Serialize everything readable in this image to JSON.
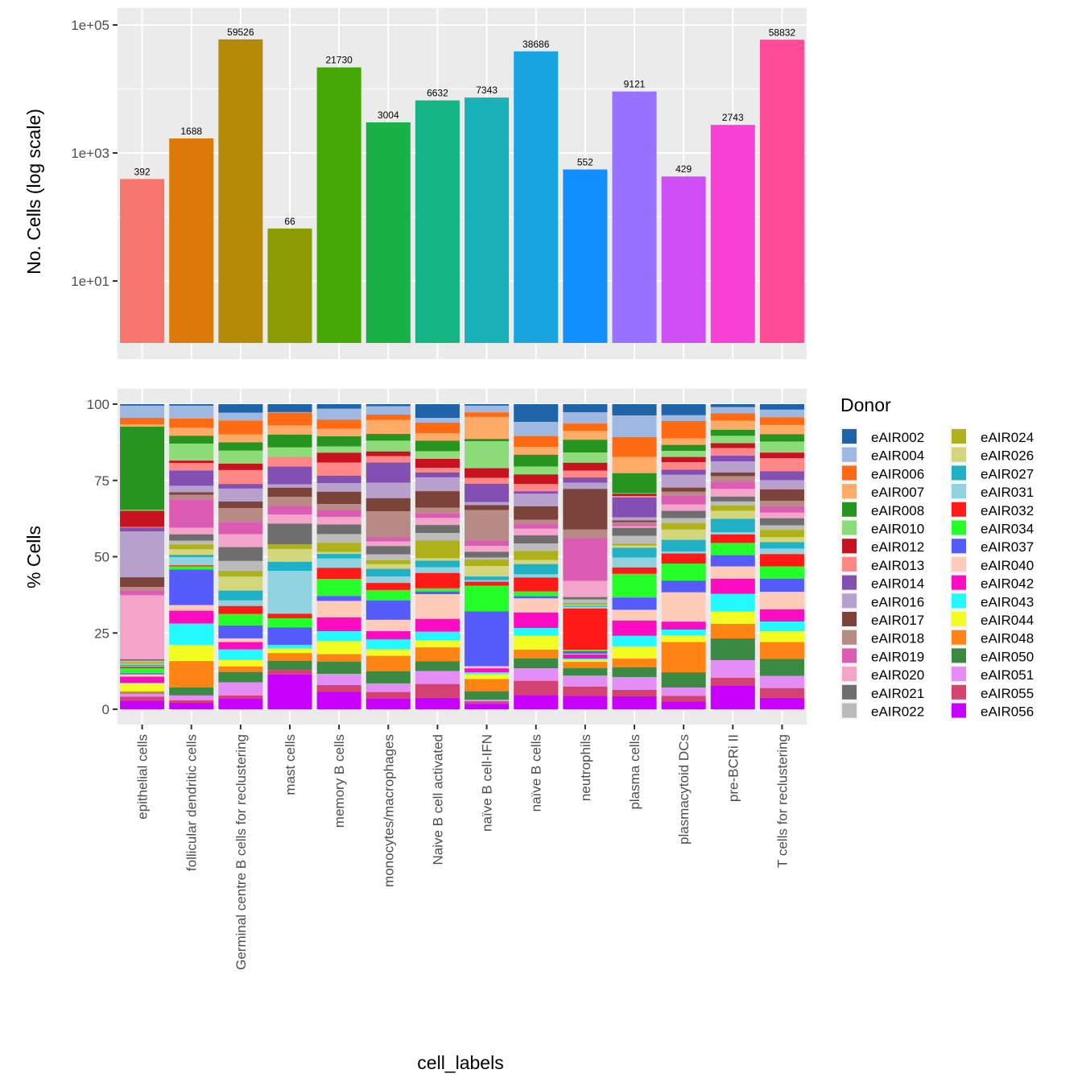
{
  "chart_data": [
    {
      "type": "bar",
      "title": "",
      "xlabel": "",
      "ylabel": "No. Cells (log scale)",
      "yscale": "log",
      "ylim": [
        1,
        100000
      ],
      "yticks": [
        10,
        1000,
        100000
      ],
      "ytick_labels": [
        "1e+01",
        "1e+03",
        "1e+05"
      ],
      "categories": [
        "epithelial cells",
        "follicular dendritic cells",
        "Germinal centre B cells for reclustering",
        "mast cells",
        "memory B cells",
        "monocytes/macrophages",
        "Naive B cell activated",
        "naïve B cell-IFN",
        "naïve B cells",
        "neutrophils",
        "plasma cells",
        "plasmacytoid DCs",
        "pre-BCRi II",
        "T cells for reclustering"
      ],
      "values": [
        392,
        1688,
        59526,
        66,
        21730,
        3004,
        6632,
        7343,
        38686,
        552,
        9121,
        429,
        2743,
        58832
      ],
      "data_labels": [
        "392",
        "1688",
        "59526",
        "66",
        "21730",
        "3004",
        "6632",
        "7343",
        "38686",
        "552",
        "9121",
        "429",
        "2743",
        "58832"
      ],
      "colors": [
        "#F8766D",
        "#DB7A0B",
        "#B58A07",
        "#8A9B04",
        "#45A805",
        "#17B145",
        "#16B585",
        "#17B1B7",
        "#19A5E2",
        "#128FFF",
        "#9772FF",
        "#D04EF5",
        "#F841D4",
        "#FF4A97"
      ],
      "grid": true
    },
    {
      "type": "bar",
      "stacked": true,
      "title": "",
      "xlabel": "cell_labels",
      "ylabel": "% Cells",
      "ylim": [
        0,
        100
      ],
      "yticks": [
        0,
        25,
        50,
        75,
        100
      ],
      "ytick_labels": [
        "0",
        "25",
        "50",
        "75",
        "100"
      ],
      "categories": [
        "epithelial cells",
        "follicular dendritic cells",
        "Germinal centre B cells for reclustering",
        "mast cells",
        "memory B cells",
        "monocytes/macrophages",
        "Naive B cell activated",
        "naïve B cell-IFN",
        "naïve B cells",
        "neutrophils",
        "plasma cells",
        "plasmacytoid DCs",
        "pre-BCRi II",
        "T cells for reclustering"
      ],
      "legend_title": "Donor",
      "legend_position": "right",
      "grid": true,
      "series": [
        {
          "name": "eAIR002",
          "color": "#1F63A8",
          "values": [
            0.5,
            0.5,
            2.8,
            2.8,
            1.5,
            0.7,
            4.5,
            0.5,
            5.7,
            2.8,
            3.7,
            3.5,
            1.0,
            1.8
          ]
        },
        {
          "name": "eAIR004",
          "color": "#9FB8E1",
          "values": [
            4.0,
            4.2,
            2.5,
            0.2,
            3.5,
            2.7,
            1.5,
            2.2,
            4.5,
            3.8,
            7.0,
            1.8,
            2.0,
            2.5
          ]
        },
        {
          "name": "eAIR006",
          "color": "#FF6B12",
          "values": [
            2.1,
            3.0,
            4.5,
            4.5,
            3.0,
            1.8,
            3.5,
            1.5,
            3.5,
            2.5,
            6.5,
            5.5,
            2.4,
            2.5
          ]
        },
        {
          "name": "eAIR007",
          "color": "#FFAA67",
          "values": [
            0.8,
            2.6,
            2.6,
            3.2,
            2.4,
            4.5,
            2.4,
            7.2,
            2.5,
            3.0,
            5.3,
            2.0,
            3.0,
            3.0
          ]
        },
        {
          "name": "eAIR008",
          "color": "#27941F",
          "values": [
            27.3,
            2.6,
            2.7,
            4.5,
            3.3,
            2.2,
            3.4,
            0.8,
            3.8,
            4.3,
            6.5,
            1.9,
            2.0,
            2.4
          ]
        },
        {
          "name": "eAIR010",
          "color": "#8CDD7A",
          "values": [
            0.3,
            5.5,
            4.2,
            3.2,
            2.0,
            3.5,
            2.5,
            8.8,
            2.5,
            3.5,
            0.2,
            1.9,
            2.4,
            3.6
          ]
        },
        {
          "name": "eAIR012",
          "color": "#C9121F",
          "values": [
            5.3,
            0.8,
            2.1,
            0.0,
            3.2,
            1.5,
            2.9,
            3.2,
            3.1,
            2.7,
            0.7,
            1.6,
            1.6,
            1.8
          ]
        },
        {
          "name": "eAIR013",
          "color": "#FF8786",
          "values": [
            0.2,
            2.4,
            4.5,
            3.5,
            4.2,
            2.1,
            1.5,
            1.9,
            2.3,
            2.3,
            0.5,
            2.4,
            2.5,
            4.3
          ]
        },
        {
          "name": "eAIR014",
          "color": "#844FB2",
          "values": [
            1.3,
            5.0,
            1.5,
            6.2,
            2.4,
            6.6,
            1.6,
            6.0,
            0.8,
            1.8,
            6.5,
            1.6,
            1.9,
            2.9
          ]
        },
        {
          "name": "eAIR016",
          "color": "#B8A0CD",
          "values": [
            15.0,
            2.1,
            4.2,
            1.2,
            2.8,
            5.0,
            4.5,
            1.0,
            4.0,
            2.1,
            1.0,
            4.0,
            3.6,
            3.0
          ]
        },
        {
          "name": "eAIR017",
          "color": "#7B4339",
          "values": [
            3.2,
            0.8,
            2.1,
            3.2,
            4.0,
            4.3,
            5.4,
            1.6,
            4.3,
            13.8,
            0.6,
            1.3,
            1.2,
            3.7
          ]
        },
        {
          "name": "eAIR018",
          "color": "#B78A83",
          "values": [
            1.1,
            1.5,
            4.5,
            3.2,
            1.8,
            8.3,
            1.8,
            10.0,
            1.3,
            2.9,
            0.6,
            1.3,
            1.8,
            1.8
          ]
        },
        {
          "name": "eAIR019",
          "color": "#DC5CB4",
          "values": [
            1.6,
            9.3,
            4.0,
            3.0,
            2.4,
            1.5,
            1.5,
            1.8,
            1.6,
            14.5,
            0.7,
            2.7,
            2.4,
            2.1
          ]
        },
        {
          "name": "eAIR020",
          "color": "#F4A3C9",
          "values": [
            21.0,
            2.1,
            4.2,
            3.2,
            2.4,
            1.5,
            2.3,
            1.9,
            2.1,
            5.5,
            0.5,
            2.0,
            2.5,
            1.8
          ]
        },
        {
          "name": "eAIR021",
          "color": "#6E6E6E",
          "values": [
            0.5,
            2.1,
            4.5,
            7.3,
            3.1,
            2.7,
            2.6,
            1.9,
            2.6,
            0.8,
            2.6,
            2.3,
            1.6,
            2.3
          ]
        },
        {
          "name": "eAIR022",
          "color": "#BBBBBB",
          "values": [
            0.4,
            1.2,
            3.2,
            0.0,
            2.8,
            1.9,
            2.4,
            0.6,
            2.4,
            1.2,
            2.6,
            1.6,
            1.3,
            1.5
          ]
        },
        {
          "name": "eAIR024",
          "color": "#AFB11A",
          "values": [
            0.6,
            1.6,
            1.9,
            1.6,
            3.0,
            1.3,
            5.8,
            2.2,
            2.9,
            0.6,
            0.6,
            2.0,
            1.8,
            2.4
          ]
        },
        {
          "name": "eAIR026",
          "color": "#D4D67C",
          "values": [
            0.3,
            1.8,
            4.5,
            4.5,
            0.6,
            1.5,
            0.8,
            3.4,
            1.3,
            0.3,
            0.7,
            3.2,
            2.6,
            1.6
          ]
        },
        {
          "name": "eAIR027",
          "color": "#21B1C6",
          "values": [
            0.5,
            0.8,
            3.2,
            3.2,
            1.5,
            2.5,
            2.1,
            1.2,
            3.3,
            0.4,
            3.2,
            3.7,
            4.4,
            2.1
          ]
        },
        {
          "name": "eAIR031",
          "color": "#90D3E0",
          "values": [
            0.2,
            2.6,
            1.8,
            15.0,
            3.0,
            2.1,
            1.9,
            0.5,
            1.0,
            0.6,
            3.2,
            0.6,
            0.7,
            1.8
          ]
        },
        {
          "name": "eAIR032",
          "color": "#FF1A18",
          "values": [
            0.5,
            0.4,
            2.6,
            1.6,
            3.6,
            2.3,
            5.0,
            1.3,
            4.5,
            14.0,
            2.1,
            3.2,
            2.8,
            4.0
          ]
        },
        {
          "name": "eAIR034",
          "color": "#23FF27",
          "values": [
            1.6,
            1.0,
            3.7,
            3.2,
            5.5,
            3.4,
            1.0,
            8.4,
            1.5,
            0.5,
            7.7,
            5.3,
            4.0,
            4.0
          ]
        },
        {
          "name": "eAIR037",
          "color": "#565BFC",
          "values": [
            0.4,
            11.6,
            4.2,
            6.1,
            1.6,
            6.3,
            0.9,
            18.0,
            0.7,
            0.9,
            4.0,
            3.7,
            3.7,
            4.3
          ]
        },
        {
          "name": "eAIR040",
          "color": "#FECBB9",
          "values": [
            0.7,
            1.8,
            1.2,
            0.0,
            5.3,
            3.7,
            8.0,
            0.7,
            4.5,
            0.2,
            3.5,
            9.2,
            4.0,
            5.7
          ]
        },
        {
          "name": "eAIR042",
          "color": "#FC0BC3",
          "values": [
            2.1,
            4.2,
            2.4,
            0.0,
            4.5,
            2.7,
            4.2,
            1.3,
            5.0,
            1.4,
            5.0,
            2.5,
            5.0,
            4.0
          ]
        },
        {
          "name": "eAIR043",
          "color": "#23FAFF",
          "values": [
            0.1,
            6.9,
            3.4,
            1.3,
            3.2,
            3.2,
            2.7,
            0.6,
            2.4,
            0.4,
            3.4,
            1.8,
            5.8,
            3.2
          ]
        },
        {
          "name": "eAIR044",
          "color": "#F4FD22",
          "values": [
            2.6,
            5.3,
            2.1,
            1.6,
            4.2,
            2.1,
            2.4,
            1.6,
            4.5,
            0.7,
            4.0,
            2.1,
            4.0,
            3.5
          ]
        },
        {
          "name": "eAIR048",
          "color": "#FF8414",
          "values": [
            0.5,
            8.6,
            1.8,
            2.7,
            2.4,
            5.0,
            4.5,
            4.0,
            2.8,
            2.1,
            2.8,
            9.5,
            4.8,
            5.5
          ]
        },
        {
          "name": "eAIR050",
          "color": "#3B8A43",
          "values": [
            0.3,
            2.6,
            3.4,
            3.2,
            4.0,
            4.0,
            3.2,
            2.8,
            3.2,
            2.6,
            3.2,
            4.8,
            7.1,
            5.5
          ]
        },
        {
          "name": "eAIR051",
          "color": "#E48DF7",
          "values": [
            1.0,
            1.6,
            4.2,
            0.0,
            3.6,
            2.8,
            4.2,
            0.5,
            4.0,
            3.7,
            4.2,
            2.6,
            5.8,
            4.0
          ]
        },
        {
          "name": "eAIR055",
          "color": "#D34271",
          "values": [
            1.3,
            0.8,
            1.0,
            1.6,
            2.1,
            2.1,
            4.5,
            0.8,
            4.5,
            3.2,
            2.1,
            1.8,
            2.5,
            3.2
          ]
        },
        {
          "name": "eAIR056",
          "color": "#C800FF",
          "values": [
            2.8,
            2.1,
            3.5,
            12.2,
            5.7,
            3.5,
            3.7,
            1.8,
            4.6,
            4.5,
            4.2,
            2.4,
            7.8,
            3.7
          ]
        }
      ]
    }
  ]
}
